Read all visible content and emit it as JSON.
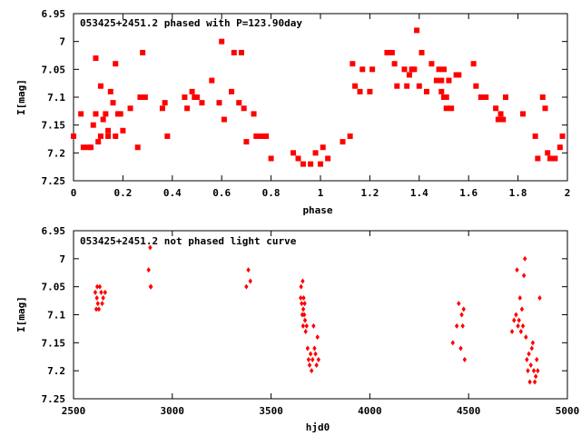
{
  "chart_data": [
    {
      "type": "scatter",
      "title": "053425+2451.2 phased with P=123.90day",
      "xlabel": "phase",
      "ylabel": "I[mag]",
      "xlim": [
        0,
        2
      ],
      "ylim": [
        6.95,
        7.25
      ],
      "y_inverted": true,
      "xticks": [
        "0",
        "0.2",
        "0.4",
        "0.6",
        "0.8",
        "1",
        "1.2",
        "1.4",
        "1.6",
        "1.8",
        "2"
      ],
      "yticks": [
        "6.95",
        "7",
        "7.05",
        "7.1",
        "7.15",
        "7.2",
        "7.25"
      ],
      "marker": "filled-square",
      "color": "#ff0000",
      "x": [
        0.0,
        0.03,
        0.04,
        0.06,
        0.07,
        0.08,
        0.09,
        0.09,
        0.1,
        0.11,
        0.11,
        0.12,
        0.13,
        0.14,
        0.14,
        0.15,
        0.16,
        0.17,
        0.17,
        0.18,
        0.19,
        0.2,
        0.23,
        0.26,
        0.27,
        0.28,
        0.29,
        0.36,
        0.37,
        0.38,
        0.45,
        0.46,
        0.48,
        0.49,
        0.5,
        0.52,
        0.56,
        0.59,
        0.6,
        0.61,
        0.64,
        0.65,
        0.67,
        0.68,
        0.69,
        0.7,
        0.73,
        0.74,
        0.76,
        0.77,
        0.78,
        0.8,
        0.89,
        0.91,
        0.93,
        0.96,
        0.98,
        1.0,
        1.01,
        1.03,
        1.09,
        1.12,
        1.13,
        1.14,
        1.16,
        1.17,
        1.2,
        1.21,
        1.27,
        1.29,
        1.3,
        1.31,
        1.34,
        1.35,
        1.36,
        1.37,
        1.38,
        1.39,
        1.4,
        1.41,
        1.43,
        1.45,
        1.47,
        1.48,
        1.49,
        1.49,
        1.5,
        1.5,
        1.51,
        1.51,
        1.52,
        1.53,
        1.55,
        1.56,
        1.62,
        1.63,
        1.65,
        1.67,
        1.71,
        1.72,
        1.73,
        1.74,
        1.75,
        1.82,
        1.87,
        1.88,
        1.9,
        1.91,
        1.92,
        1.93,
        1.95,
        1.97,
        1.98
      ],
      "y": [
        7.17,
        7.13,
        7.19,
        7.19,
        7.19,
        7.15,
        7.13,
        7.03,
        7.18,
        7.17,
        7.08,
        7.14,
        7.13,
        7.16,
        7.17,
        7.09,
        7.11,
        7.04,
        7.17,
        7.13,
        7.13,
        7.16,
        7.12,
        7.19,
        7.1,
        7.02,
        7.1,
        7.12,
        7.11,
        7.17,
        7.1,
        7.12,
        7.09,
        7.1,
        7.1,
        7.11,
        7.07,
        7.11,
        7.0,
        7.14,
        7.09,
        7.02,
        7.11,
        7.02,
        7.12,
        7.18,
        7.13,
        7.17,
        7.17,
        7.17,
        7.17,
        7.21,
        7.2,
        7.21,
        7.22,
        7.22,
        7.2,
        7.22,
        7.19,
        7.21,
        7.18,
        7.17,
        7.04,
        7.08,
        7.09,
        7.05,
        7.09,
        7.05,
        7.02,
        7.02,
        7.04,
        7.08,
        7.05,
        7.08,
        7.06,
        7.05,
        7.05,
        6.98,
        7.08,
        7.02,
        7.09,
        7.04,
        7.07,
        7.05,
        7.07,
        7.09,
        7.05,
        7.1,
        7.1,
        7.12,
        7.07,
        7.12,
        7.06,
        7.06,
        7.04,
        7.08,
        7.1,
        7.1,
        7.12,
        7.14,
        7.13,
        7.14,
        7.1,
        7.13,
        7.17,
        7.21,
        7.1,
        7.12,
        7.2,
        7.21,
        7.21,
        7.19,
        7.17
      ]
    },
    {
      "type": "scatter",
      "title": "053425+2451.2 not phased light curve",
      "xlabel": "hjd0",
      "ylabel": "I[mag]",
      "xlim": [
        2500,
        5000
      ],
      "ylim": [
        6.95,
        7.25
      ],
      "y_inverted": true,
      "xticks": [
        "2500",
        "3000",
        "3500",
        "4000",
        "4500",
        "5000"
      ],
      "yticks": [
        "6.95",
        "7",
        "7.05",
        "7.1",
        "7.15",
        "7.2",
        "7.25"
      ],
      "marker": "filled-diamond",
      "color": "#ff0000",
      "x": [
        2610,
        2615,
        2618,
        2620,
        2623,
        2628,
        2633,
        2640,
        2645,
        2650,
        2660,
        2880,
        2888,
        2890,
        2892,
        3375,
        3385,
        3395,
        3650,
        3652,
        3655,
        3658,
        3660,
        3662,
        3663,
        3665,
        3668,
        3670,
        3672,
        3675,
        3680,
        3685,
        3690,
        3695,
        3700,
        3705,
        3710,
        3715,
        3720,
        3725,
        3730,
        3735,
        3740,
        4420,
        4440,
        4450,
        4460,
        4465,
        4470,
        4475,
        4480,
        4720,
        4730,
        4740,
        4745,
        4750,
        4755,
        4760,
        4765,
        4770,
        4775,
        4780,
        4785,
        4790,
        4795,
        4800,
        4805,
        4810,
        4815,
        4820,
        4825,
        4830,
        4835,
        4840,
        4845,
        4850,
        4860
      ],
      "y": [
        7.06,
        7.09,
        7.07,
        7.05,
        7.08,
        7.09,
        7.05,
        7.06,
        7.08,
        7.07,
        7.06,
        7.02,
        6.98,
        7.05,
        7.05,
        7.05,
        7.02,
        7.04,
        7.07,
        7.05,
        7.08,
        7.1,
        7.04,
        7.12,
        7.09,
        7.07,
        7.1,
        7.08,
        7.11,
        7.13,
        7.12,
        7.16,
        7.18,
        7.19,
        7.17,
        7.2,
        7.18,
        7.12,
        7.16,
        7.17,
        7.19,
        7.14,
        7.18,
        7.15,
        7.12,
        7.08,
        7.16,
        7.1,
        7.12,
        7.09,
        7.18,
        7.13,
        7.11,
        7.1,
        7.02,
        7.12,
        7.11,
        7.07,
        7.13,
        7.09,
        7.12,
        7.03,
        7.0,
        7.14,
        7.18,
        7.2,
        7.17,
        7.22,
        7.19,
        7.16,
        7.15,
        7.2,
        7.22,
        7.21,
        7.18,
        7.2,
        7.07
      ]
    }
  ]
}
